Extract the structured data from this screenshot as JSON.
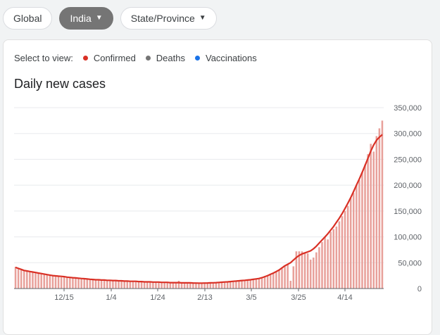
{
  "filters": {
    "global": "Global",
    "country": "India",
    "state": "State/Province"
  },
  "legend": {
    "prompt": "Select to view:",
    "confirmed": "Confirmed",
    "deaths": "Deaths",
    "vaccinations": "Vaccinations"
  },
  "colors": {
    "confirmed": "#d93025",
    "deaths": "#757575",
    "vaccinations": "#1a73e8",
    "bar": "#e8a09a"
  },
  "chart_data": {
    "type": "bar",
    "title": "Daily new cases",
    "ylim": [
      0,
      350000
    ],
    "y_ticks": [
      "350,000",
      "300,000",
      "250,000",
      "200,000",
      "150,000",
      "100,000",
      "50,000",
      "0"
    ],
    "x_ticks": [
      "12/15",
      "1/4",
      "1/24",
      "2/13",
      "3/5",
      "3/25",
      "4/14"
    ],
    "series": [
      {
        "name": "Confirmed",
        "bar_values": [
          42000,
          38000,
          36000,
          34000,
          33000,
          32000,
          31000,
          30000,
          29000,
          28000,
          27000,
          26000,
          25000,
          24000,
          23000,
          23000,
          22000,
          22000,
          21000,
          21000,
          20000,
          20000,
          19000,
          19000,
          18500,
          18000,
          18000,
          17500,
          17000,
          17000,
          16500,
          16500,
          16000,
          16000,
          15500,
          15500,
          15000,
          15000,
          14500,
          14500,
          14000,
          14000,
          14000,
          13500,
          13500,
          13000,
          13000,
          13000,
          12500,
          12500,
          12500,
          12000,
          12000,
          12000,
          11500,
          11500,
          11500,
          15000,
          11000,
          11000,
          11000,
          11000,
          10500,
          10500,
          10500,
          10500,
          11000,
          11000,
          11000,
          11500,
          11500,
          12000,
          12000,
          12500,
          13000,
          13500,
          14000,
          14500,
          15000,
          15500,
          16000,
          16500,
          17000,
          18000,
          19000,
          20000,
          22000,
          24000,
          26000,
          28000,
          30000,
          33000,
          36000,
          40000,
          45000,
          47000,
          15000,
          43000,
          72000,
          72000,
          72000,
          70000,
          68000,
          56000,
          60000,
          70000,
          80000,
          90000,
          100000,
          95000,
          110000,
          115000,
          120000,
          130000,
          140000,
          150000,
          160000,
          175000,
          185000,
          200000,
          210000,
          225000,
          240000,
          260000,
          280000,
          265000,
          295000,
          310000,
          325000
        ],
        "line_values": [
          41000,
          39000,
          37000,
          35000,
          34000,
          33000,
          32000,
          31000,
          30000,
          29000,
          28000,
          27000,
          26000,
          25000,
          24500,
          24000,
          23500,
          23000,
          22000,
          21500,
          21000,
          20500,
          20000,
          19500,
          19000,
          18500,
          18000,
          17500,
          17000,
          17000,
          16500,
          16500,
          16000,
          16000,
          15500,
          15500,
          15000,
          15000,
          14500,
          14500,
          14000,
          14000,
          14000,
          13500,
          13500,
          13000,
          13000,
          13000,
          12500,
          12500,
          12500,
          12000,
          12000,
          12000,
          11500,
          11500,
          11500,
          11500,
          11000,
          11000,
          11000,
          11000,
          10800,
          10600,
          10500,
          10500,
          10600,
          10800,
          11000,
          11200,
          11500,
          11800,
          12200,
          12600,
          13000,
          13500,
          14000,
          14500,
          15000,
          15500,
          16000,
          16500,
          17000,
          17800,
          18600,
          19500,
          21000,
          23000,
          25000,
          27500,
          30000,
          33000,
          36000,
          40000,
          44000,
          47000,
          50000,
          55000,
          60000,
          64000,
          67000,
          69000,
          71000,
          73000,
          77000,
          82000,
          88000,
          94000,
          100000,
          106000,
          113000,
          120000,
          128000,
          136000,
          145000,
          155000,
          165000,
          176000,
          188000,
          200000,
          212000,
          225000,
          238000,
          252000,
          266000,
          278000,
          287000,
          293000,
          298000
        ]
      }
    ]
  }
}
